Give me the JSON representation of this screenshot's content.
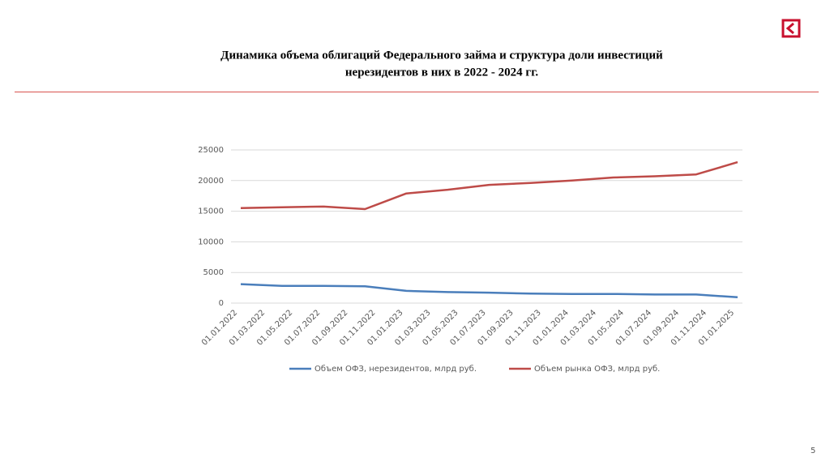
{
  "header": {
    "title_line1": "Динамика объема облигаций Федерального займа и структура доли инвестиций",
    "title_line2": "нерезидентов в них в 2022 - 2024 гг.",
    "page_number": "5"
  },
  "chart_data": {
    "type": "line",
    "x": [
      "01.01.2022",
      "01.04.2022",
      "01.07.2022",
      "01.10.2022",
      "01.01.2023",
      "01.04.2023",
      "01.07.2023",
      "01.10.2023",
      "01.01.2024",
      "01.04.2024",
      "01.07.2024",
      "01.10.2024",
      "01.01.2025"
    ],
    "series": [
      {
        "name": "Объем ОФЗ, нерезидентов, млрд руб.",
        "color": "#4a7ebb",
        "values": [
          3100,
          2800,
          2800,
          2750,
          2000,
          1800,
          1700,
          1550,
          1500,
          1500,
          1400,
          1400,
          950
        ]
      },
      {
        "name": "Объем рынка ОФЗ, млрд руб.",
        "color": "#be4b48",
        "values": [
          15500,
          15650,
          15750,
          15350,
          17900,
          18500,
          19300,
          19600,
          20000,
          20500,
          20700,
          21000,
          23000
        ]
      }
    ],
    "xlim": [
      "01.01.2022",
      "01.01.2025"
    ],
    "xticks": [
      "01.01.2022",
      "01.03.2022",
      "01.05.2022",
      "01.07.2022",
      "01.09.2022",
      "01.11.2022",
      "01.01.2023",
      "01.03.2023",
      "01.05.2023",
      "01.07.2023",
      "01.09.2023",
      "01.11.2023",
      "01.01.2024",
      "01.03.2024",
      "01.05.2024",
      "01.07.2024",
      "01.09.2024",
      "01.11.2024",
      "01.01.2025"
    ],
    "ylim": [
      0,
      25000
    ],
    "yticks": [
      0,
      5000,
      10000,
      15000,
      20000,
      25000
    ],
    "grid": true,
    "legend": "bottom"
  }
}
